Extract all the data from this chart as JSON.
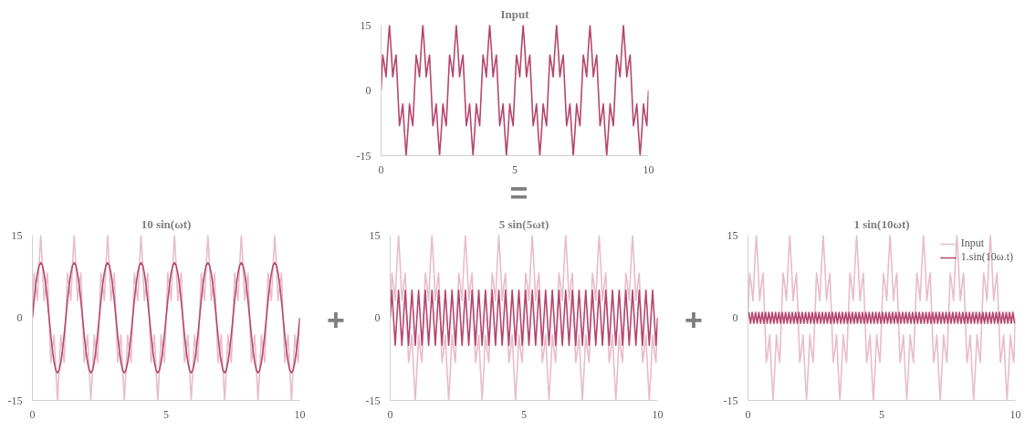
{
  "chart_data": [
    {
      "type": "line",
      "title": "Input",
      "xlim": [
        0,
        10
      ],
      "ylim": [
        -15,
        15
      ],
      "xticks": [
        0,
        5,
        10
      ],
      "yticks": [
        -15,
        0,
        15
      ],
      "annotations": [
        "="
      ],
      "x": [
        0,
        0.0625,
        0.125,
        0.1875,
        0.25,
        0.3125,
        0.375,
        0.4375,
        0.5,
        0.5625,
        0.625,
        0.6875,
        0.75,
        0.8125,
        0.875,
        0.9375,
        1,
        1.0625,
        1.125,
        1.1875,
        1.25,
        1.3125,
        1.375,
        1.4375,
        1.5,
        1.5625,
        1.625,
        1.6875,
        1.75,
        1.8125,
        1.875,
        1.9375,
        2,
        2.0625,
        2.125,
        2.1875,
        2.25,
        2.3125,
        2.375,
        2.4375,
        2.5,
        2.5625,
        2.625,
        2.6875,
        2.75,
        2.8125,
        2.875,
        2.9375,
        3,
        3.0625,
        3.125,
        3.1875,
        3.25,
        3.3125,
        3.375,
        3.4375,
        3.5,
        3.5625,
        3.625,
        3.6875,
        3.75,
        3.8125,
        3.875,
        3.9375,
        4,
        4.0625,
        4.125,
        4.1875,
        4.25,
        4.3125,
        4.375,
        4.4375,
        4.5,
        4.5625,
        4.625,
        4.6875,
        4.75,
        4.8125,
        4.875,
        4.9375,
        5,
        5.0625,
        5.125,
        5.1875,
        5.25,
        5.3125,
        5.375,
        5.4375,
        5.5,
        5.5625,
        5.625,
        5.6875,
        5.75,
        5.8125,
        5.875,
        5.9375,
        6,
        6.0625,
        6.125,
        6.1875,
        6.25,
        6.3125,
        6.375,
        6.4375,
        6.5,
        6.5625,
        6.625,
        6.6875,
        6.75,
        6.8125,
        6.875,
        6.9375,
        7,
        7.0625,
        7.125,
        7.1875,
        7.25,
        7.3125,
        7.375,
        7.4375,
        7.5,
        7.5625,
        7.625,
        7.6875,
        7.75,
        7.8125,
        7.875,
        7.9375,
        8,
        8.0625,
        8.125,
        8.1875,
        8.25,
        8.3125,
        8.375,
        8.4375,
        8.5,
        8.5625,
        8.625,
        8.6875,
        8.75,
        8.8125,
        8.875,
        8.9375,
        9,
        9.0625,
        9.125,
        9.1875,
        9.25,
        9.3125,
        9.375,
        9.4375,
        9.5,
        9.5625,
        9.625,
        9.6875,
        9.75,
        9.8125,
        9.875,
        9.9375,
        10
      ],
      "series": [
        {
          "color": "#b5466e",
          "values": [
            0,
            8.1,
            5.9,
            3.1,
            9.5,
            15,
            9.5,
            3.1,
            5.9,
            8.1,
            0,
            -8.1,
            -5.9,
            -3.1,
            -9.5,
            -15,
            -9.5,
            -3.1,
            -5.9,
            -8.1,
            0,
            8.1,
            5.9,
            3.1,
            9.5,
            15,
            9.5,
            3.1,
            5.9,
            8.1,
            0,
            -8.1,
            -5.9,
            -3.1,
            -9.5,
            -15,
            -9.5,
            -3.1,
            -5.9,
            -8.1,
            0,
            8.1,
            5.9,
            3.1,
            9.5,
            15,
            9.5,
            3.1,
            5.9,
            8.1,
            0,
            -8.1,
            -5.9,
            -3.1,
            -9.5,
            -15,
            -9.5,
            -3.1,
            -5.9,
            -8.1,
            0,
            8.1,
            5.9,
            3.1,
            9.5,
            15,
            9.5,
            3.1,
            5.9,
            8.1,
            0,
            -8.1,
            -5.9,
            -3.1,
            -9.5,
            -15,
            -9.5,
            -3.1,
            -5.9,
            -8.1,
            0,
            8.1,
            5.9,
            3.1,
            9.5,
            15,
            9.5,
            3.1,
            5.9,
            8.1,
            0,
            -8.1,
            -5.9,
            -3.1,
            -9.5,
            -15,
            -9.5,
            -3.1,
            -5.9,
            -8.1,
            0,
            8.1,
            5.9,
            3.1,
            9.5,
            15,
            9.5,
            3.1,
            5.9,
            8.1,
            0,
            -8.1,
            -5.9,
            -3.1,
            -9.5,
            -15,
            -9.5,
            -3.1,
            -5.9,
            -8.1,
            0,
            8.1,
            5.9,
            3.1,
            9.5,
            15,
            9.5,
            3.1,
            5.9,
            8.1,
            0,
            -8.1,
            -5.9,
            -3.1,
            -9.5,
            -15,
            -9.5,
            -3.1,
            -5.9,
            -8.1,
            0,
            8.1,
            5.9,
            3.1,
            9.5,
            15,
            9.5,
            3.1,
            5.9,
            8.1,
            0,
            -8.1,
            -5.9,
            -3.1,
            -9.5,
            -15,
            -9.5,
            -3.1,
            -5.9,
            -8.1,
            0
          ]
        }
      ]
    },
    {
      "type": "line",
      "title": "10 sin(ωt)",
      "xlim": [
        0,
        10
      ],
      "ylim": [
        -15,
        15
      ],
      "xticks": [
        0,
        5,
        10
      ],
      "yticks": [
        -15,
        0,
        15
      ],
      "x": [
        0,
        0.0625,
        0.125,
        0.1875,
        0.25,
        0.3125,
        0.375,
        0.4375,
        0.5,
        0.5625,
        0.625,
        0.6875,
        0.75,
        0.8125,
        0.875,
        0.9375,
        1,
        1.0625,
        1.125,
        1.1875,
        1.25,
        1.3125,
        1.375,
        1.4375,
        1.5,
        1.5625,
        1.625,
        1.6875,
        1.75,
        1.8125,
        1.875,
        1.9375,
        2,
        2.0625,
        2.125,
        2.1875,
        2.25,
        2.3125,
        2.375,
        2.4375,
        2.5,
        2.5625,
        2.625,
        2.6875,
        2.75,
        2.8125,
        2.875,
        2.9375,
        3,
        3.0625,
        3.125,
        3.1875,
        3.25,
        3.3125,
        3.375,
        3.4375,
        3.5,
        3.5625,
        3.625,
        3.6875,
        3.75,
        3.8125,
        3.875,
        3.9375,
        4,
        4.0625,
        4.125,
        4.1875,
        4.25,
        4.3125,
        4.375,
        4.4375,
        4.5,
        4.5625,
        4.625,
        4.6875,
        4.75,
        4.8125,
        4.875,
        4.9375,
        5,
        5.0625,
        5.125,
        5.1875,
        5.25,
        5.3125,
        5.375,
        5.4375,
        5.5,
        5.5625,
        5.625,
        5.6875,
        5.75,
        5.8125,
        5.875,
        5.9375,
        6,
        6.0625,
        6.125,
        6.1875,
        6.25,
        6.3125,
        6.375,
        6.4375,
        6.5,
        6.5625,
        6.625,
        6.6875,
        6.75,
        6.8125,
        6.875,
        6.9375,
        7,
        7.0625,
        7.125,
        7.1875,
        7.25,
        7.3125,
        7.375,
        7.4375,
        7.5,
        7.5625,
        7.625,
        7.6875,
        7.75,
        7.8125,
        7.875,
        7.9375,
        8,
        8.0625,
        8.125,
        8.1875,
        8.25,
        8.3125,
        8.375,
        8.4375,
        8.5,
        8.5625,
        8.625,
        8.6875,
        8.75,
        8.8125,
        8.875,
        8.9375,
        9,
        9.0625,
        9.125,
        9.1875,
        9.25,
        9.3125,
        9.375,
        9.4375,
        9.5,
        9.5625,
        9.625,
        9.6875,
        9.75,
        9.8125,
        9.875,
        9.9375,
        10
      ],
      "series": [
        {
          "color": "#e8bccb",
          "values": [
            0,
            8.1,
            5.9,
            3.1,
            9.5,
            15,
            9.5,
            3.1,
            5.9,
            8.1,
            0,
            -8.1,
            -5.9,
            -3.1,
            -9.5,
            -15,
            -9.5,
            -3.1,
            -5.9,
            -8.1,
            0,
            8.1,
            5.9,
            3.1,
            9.5,
            15,
            9.5,
            3.1,
            5.9,
            8.1,
            0,
            -8.1,
            -5.9,
            -3.1,
            -9.5,
            -15,
            -9.5,
            -3.1,
            -5.9,
            -8.1,
            0,
            8.1,
            5.9,
            3.1,
            9.5,
            15,
            9.5,
            3.1,
            5.9,
            8.1,
            0,
            -8.1,
            -5.9,
            -3.1,
            -9.5,
            -15,
            -9.5,
            -3.1,
            -5.9,
            -8.1,
            0,
            8.1,
            5.9,
            3.1,
            9.5,
            15,
            9.5,
            3.1,
            5.9,
            8.1,
            0,
            -8.1,
            -5.9,
            -3.1,
            -9.5,
            -15,
            -9.5,
            -3.1,
            -5.9,
            -8.1,
            0,
            8.1,
            5.9,
            3.1,
            9.5,
            15,
            9.5,
            3.1,
            5.9,
            8.1,
            0,
            -8.1,
            -5.9,
            -3.1,
            -9.5,
            -15,
            -9.5,
            -3.1,
            -5.9,
            -8.1,
            0,
            8.1,
            5.9,
            3.1,
            9.5,
            15,
            9.5,
            3.1,
            5.9,
            8.1,
            0,
            -8.1,
            -5.9,
            -3.1,
            -9.5,
            -15,
            -9.5,
            -3.1,
            -5.9,
            -8.1,
            0,
            8.1,
            5.9,
            3.1,
            9.5,
            15,
            9.5,
            3.1,
            5.9,
            8.1,
            0,
            -8.1,
            -5.9,
            -3.1,
            -9.5,
            -15,
            -9.5,
            -3.1,
            -5.9,
            -8.1,
            0,
            8.1,
            5.9,
            3.1,
            9.5,
            15,
            9.5,
            3.1,
            5.9,
            8.1,
            0,
            -8.1,
            -5.9,
            -3.1,
            -9.5,
            -15,
            -9.5,
            -3.1,
            -5.9,
            -8.1,
            0
          ]
        },
        {
          "color": "#b5466e",
          "values": [
            0,
            3.1,
            5.9,
            8.1,
            9.5,
            10,
            9.5,
            8.1,
            5.9,
            3.1,
            0,
            -3.1,
            -5.9,
            -8.1,
            -9.5,
            -10,
            -9.5,
            -8.1,
            -5.9,
            -3.1,
            0,
            3.1,
            5.9,
            8.1,
            9.5,
            10,
            9.5,
            8.1,
            5.9,
            3.1,
            0,
            -3.1,
            -5.9,
            -8.1,
            -9.5,
            -10,
            -9.5,
            -8.1,
            -5.9,
            -3.1,
            0,
            3.1,
            5.9,
            8.1,
            9.5,
            10,
            9.5,
            8.1,
            5.9,
            3.1,
            0,
            -3.1,
            -5.9,
            -8.1,
            -9.5,
            -10,
            -9.5,
            -8.1,
            -5.9,
            -3.1,
            0,
            3.1,
            5.9,
            8.1,
            9.5,
            10,
            9.5,
            8.1,
            5.9,
            3.1,
            0,
            -3.1,
            -5.9,
            -8.1,
            -9.5,
            -10,
            -9.5,
            -8.1,
            -5.9,
            -3.1,
            0,
            3.1,
            5.9,
            8.1,
            9.5,
            10,
            9.5,
            8.1,
            5.9,
            3.1,
            0,
            -3.1,
            -5.9,
            -8.1,
            -9.5,
            -10,
            -9.5,
            -8.1,
            -5.9,
            -3.1,
            0,
            3.1,
            5.9,
            8.1,
            9.5,
            10,
            9.5,
            8.1,
            5.9,
            3.1,
            0,
            -3.1,
            -5.9,
            -8.1,
            -9.5,
            -10,
            -9.5,
            -8.1,
            -5.9,
            -3.1,
            0,
            3.1,
            5.9,
            8.1,
            9.5,
            10,
            9.5,
            8.1,
            5.9,
            3.1,
            0,
            -3.1,
            -5.9,
            -8.1,
            -9.5,
            -10,
            -9.5,
            -8.1,
            -5.9,
            -3.1,
            0,
            3.1,
            5.9,
            8.1,
            9.5,
            10,
            9.5,
            8.1,
            5.9,
            3.1,
            0,
            -3.1,
            -5.9,
            -8.1,
            -9.5,
            -10,
            -9.5,
            -8.1,
            -5.9,
            -3.1,
            0
          ]
        }
      ]
    },
    {
      "type": "line",
      "title": "5 sin(5ωt)",
      "xlim": [
        0,
        10
      ],
      "ylim": [
        -15,
        15
      ],
      "xticks": [
        0,
        5,
        10
      ],
      "yticks": [
        -15,
        0,
        15
      ],
      "annotations": [
        "+"
      ],
      "x": [
        0,
        0.0625,
        0.125,
        0.1875,
        0.25,
        0.3125,
        0.375,
        0.4375,
        0.5,
        0.5625,
        0.625,
        0.6875,
        0.75,
        0.8125,
        0.875,
        0.9375,
        1,
        1.0625,
        1.125,
        1.1875,
        1.25,
        1.3125,
        1.375,
        1.4375,
        1.5,
        1.5625,
        1.625,
        1.6875,
        1.75,
        1.8125,
        1.875,
        1.9375,
        2,
        2.0625,
        2.125,
        2.1875,
        2.25,
        2.3125,
        2.375,
        2.4375,
        2.5,
        2.5625,
        2.625,
        2.6875,
        2.75,
        2.8125,
        2.875,
        2.9375,
        3,
        3.0625,
        3.125,
        3.1875,
        3.25,
        3.3125,
        3.375,
        3.4375,
        3.5,
        3.5625,
        3.625,
        3.6875,
        3.75,
        3.8125,
        3.875,
        3.9375,
        4,
        4.0625,
        4.125,
        4.1875,
        4.25,
        4.3125,
        4.375,
        4.4375,
        4.5,
        4.5625,
        4.625,
        4.6875,
        4.75,
        4.8125,
        4.875,
        4.9375,
        5,
        5.0625,
        5.125,
        5.1875,
        5.25,
        5.3125,
        5.375,
        5.4375,
        5.5,
        5.5625,
        5.625,
        5.6875,
        5.75,
        5.8125,
        5.875,
        5.9375,
        6,
        6.0625,
        6.125,
        6.1875,
        6.25,
        6.3125,
        6.375,
        6.4375,
        6.5,
        6.5625,
        6.625,
        6.6875,
        6.75,
        6.8125,
        6.875,
        6.9375,
        7,
        7.0625,
        7.125,
        7.1875,
        7.25,
        7.3125,
        7.375,
        7.4375,
        7.5,
        7.5625,
        7.625,
        7.6875,
        7.75,
        7.8125,
        7.875,
        7.9375,
        8,
        8.0625,
        8.125,
        8.1875,
        8.25,
        8.3125,
        8.375,
        8.4375,
        8.5,
        8.5625,
        8.625,
        8.6875,
        8.75,
        8.8125,
        8.875,
        8.9375,
        9,
        9.0625,
        9.125,
        9.1875,
        9.25,
        9.3125,
        9.375,
        9.4375,
        9.5,
        9.5625,
        9.625,
        9.6875,
        9.75,
        9.8125,
        9.875,
        9.9375,
        10
      ],
      "series": [
        {
          "color": "#e8bccb",
          "values": [
            0,
            8.1,
            5.9,
            3.1,
            9.5,
            15,
            9.5,
            3.1,
            5.9,
            8.1,
            0,
            -8.1,
            -5.9,
            -3.1,
            -9.5,
            -15,
            -9.5,
            -3.1,
            -5.9,
            -8.1,
            0,
            8.1,
            5.9,
            3.1,
            9.5,
            15,
            9.5,
            3.1,
            5.9,
            8.1,
            0,
            -8.1,
            -5.9,
            -3.1,
            -9.5,
            -15,
            -9.5,
            -3.1,
            -5.9,
            -8.1,
            0,
            8.1,
            5.9,
            3.1,
            9.5,
            15,
            9.5,
            3.1,
            5.9,
            8.1,
            0,
            -8.1,
            -5.9,
            -3.1,
            -9.5,
            -15,
            -9.5,
            -3.1,
            -5.9,
            -8.1,
            0,
            8.1,
            5.9,
            3.1,
            9.5,
            15,
            9.5,
            3.1,
            5.9,
            8.1,
            0,
            -8.1,
            -5.9,
            -3.1,
            -9.5,
            -15,
            -9.5,
            -3.1,
            -5.9,
            -8.1,
            0,
            8.1,
            5.9,
            3.1,
            9.5,
            15,
            9.5,
            3.1,
            5.9,
            8.1,
            0,
            -8.1,
            -5.9,
            -3.1,
            -9.5,
            -15,
            -9.5,
            -3.1,
            -5.9,
            -8.1,
            0,
            8.1,
            5.9,
            3.1,
            9.5,
            15,
            9.5,
            3.1,
            5.9,
            8.1,
            0,
            -8.1,
            -5.9,
            -3.1,
            -9.5,
            -15,
            -9.5,
            -3.1,
            -5.9,
            -8.1,
            0,
            8.1,
            5.9,
            3.1,
            9.5,
            15,
            9.5,
            3.1,
            5.9,
            8.1,
            0,
            -8.1,
            -5.9,
            -3.1,
            -9.5,
            -15,
            -9.5,
            -3.1,
            -5.9,
            -8.1,
            0,
            8.1,
            5.9,
            3.1,
            9.5,
            15,
            9.5,
            3.1,
            5.9,
            8.1,
            0,
            -8.1,
            -5.9,
            -3.1,
            -9.5,
            -15,
            -9.5,
            -3.1,
            -5.9,
            -8.1,
            0
          ]
        },
        {
          "color": "#b5466e",
          "values": [
            0,
            5,
            0,
            -5,
            0,
            5,
            0,
            -5,
            0,
            5,
            0,
            -5,
            0,
            5,
            0,
            -5,
            0,
            5,
            0,
            -5,
            0,
            5,
            0,
            -5,
            0,
            5,
            0,
            -5,
            0,
            5,
            0,
            -5,
            0,
            5,
            0,
            -5,
            0,
            5,
            0,
            -5,
            0,
            5,
            0,
            -5,
            0,
            5,
            0,
            -5,
            0,
            5,
            0,
            -5,
            0,
            5,
            0,
            -5,
            0,
            5,
            0,
            -5,
            0,
            5,
            0,
            -5,
            0,
            5,
            0,
            -5,
            0,
            5,
            0,
            -5,
            0,
            5,
            0,
            -5,
            0,
            5,
            0,
            -5,
            0,
            5,
            0,
            -5,
            0,
            5,
            0,
            -5,
            0,
            5,
            0,
            -5,
            0,
            5,
            0,
            -5,
            0,
            5,
            0,
            -5,
            0,
            5,
            0,
            -5,
            0,
            5,
            0,
            -5,
            0,
            5,
            0,
            -5,
            0,
            5,
            0,
            -5,
            0,
            5,
            0,
            -5,
            0,
            5,
            0,
            -5,
            0,
            5,
            0,
            -5,
            0,
            5,
            0,
            -5,
            0,
            5,
            0,
            -5,
            0,
            5,
            0,
            -5,
            0,
            5,
            0,
            -5,
            0,
            5,
            0,
            -5,
            0,
            5,
            0,
            -5,
            0,
            5,
            0,
            -5,
            0,
            5,
            0,
            -5,
            0
          ]
        }
      ]
    },
    {
      "type": "line",
      "title": "1 sin(10ωt)",
      "xlim": [
        0,
        10
      ],
      "ylim": [
        -15,
        15
      ],
      "xticks": [
        0,
        5,
        10
      ],
      "yticks": [
        -15,
        0,
        15
      ],
      "annotations": [
        "+"
      ],
      "legend": "top right",
      "x": [
        0,
        0.0625,
        0.125,
        0.1875,
        0.25,
        0.3125,
        0.375,
        0.4375,
        0.5,
        0.5625,
        0.625,
        0.6875,
        0.75,
        0.8125,
        0.875,
        0.9375,
        1,
        1.0625,
        1.125,
        1.1875,
        1.25,
        1.3125,
        1.375,
        1.4375,
        1.5,
        1.5625,
        1.625,
        1.6875,
        1.75,
        1.8125,
        1.875,
        1.9375,
        2,
        2.0625,
        2.125,
        2.1875,
        2.25,
        2.3125,
        2.375,
        2.4375,
        2.5,
        2.5625,
        2.625,
        2.6875,
        2.75,
        2.8125,
        2.875,
        2.9375,
        3,
        3.0625,
        3.125,
        3.1875,
        3.25,
        3.3125,
        3.375,
        3.4375,
        3.5,
        3.5625,
        3.625,
        3.6875,
        3.75,
        3.8125,
        3.875,
        3.9375,
        4,
        4.0625,
        4.125,
        4.1875,
        4.25,
        4.3125,
        4.375,
        4.4375,
        4.5,
        4.5625,
        4.625,
        4.6875,
        4.75,
        4.8125,
        4.875,
        4.9375,
        5,
        5.0625,
        5.125,
        5.1875,
        5.25,
        5.3125,
        5.375,
        5.4375,
        5.5,
        5.5625,
        5.625,
        5.6875,
        5.75,
        5.8125,
        5.875,
        5.9375,
        6,
        6.0625,
        6.125,
        6.1875,
        6.25,
        6.3125,
        6.375,
        6.4375,
        6.5,
        6.5625,
        6.625,
        6.6875,
        6.75,
        6.8125,
        6.875,
        6.9375,
        7,
        7.0625,
        7.125,
        7.1875,
        7.25,
        7.3125,
        7.375,
        7.4375,
        7.5,
        7.5625,
        7.625,
        7.6875,
        7.75,
        7.8125,
        7.875,
        7.9375,
        8,
        8.0625,
        8.125,
        8.1875,
        8.25,
        8.3125,
        8.375,
        8.4375,
        8.5,
        8.5625,
        8.625,
        8.6875,
        8.75,
        8.8125,
        8.875,
        8.9375,
        9,
        9.0625,
        9.125,
        9.1875,
        9.25,
        9.3125,
        9.375,
        9.4375,
        9.5,
        9.5625,
        9.625,
        9.6875,
        9.75,
        9.8125,
        9.875,
        9.9375,
        10
      ],
      "series": [
        {
          "name": "Input",
          "color": "#e8bccb",
          "values": [
            0,
            8.1,
            5.9,
            3.1,
            9.5,
            15,
            9.5,
            3.1,
            5.9,
            8.1,
            0,
            -8.1,
            -5.9,
            -3.1,
            -9.5,
            -15,
            -9.5,
            -3.1,
            -5.9,
            -8.1,
            0,
            8.1,
            5.9,
            3.1,
            9.5,
            15,
            9.5,
            3.1,
            5.9,
            8.1,
            0,
            -8.1,
            -5.9,
            -3.1,
            -9.5,
            -15,
            -9.5,
            -3.1,
            -5.9,
            -8.1,
            0,
            8.1,
            5.9,
            3.1,
            9.5,
            15,
            9.5,
            3.1,
            5.9,
            8.1,
            0,
            -8.1,
            -5.9,
            -3.1,
            -9.5,
            -15,
            -9.5,
            -3.1,
            -5.9,
            -8.1,
            0,
            8.1,
            5.9,
            3.1,
            9.5,
            15,
            9.5,
            3.1,
            5.9,
            8.1,
            0,
            -8.1,
            -5.9,
            -3.1,
            -9.5,
            -15,
            -9.5,
            -3.1,
            -5.9,
            -8.1,
            0,
            8.1,
            5.9,
            3.1,
            9.5,
            15,
            9.5,
            3.1,
            5.9,
            8.1,
            0,
            -8.1,
            -5.9,
            -3.1,
            -9.5,
            -15,
            -9.5,
            -3.1,
            -5.9,
            -8.1,
            0,
            8.1,
            5.9,
            3.1,
            9.5,
            15,
            9.5,
            3.1,
            5.9,
            8.1,
            0,
            -8.1,
            -5.9,
            -3.1,
            -9.5,
            -15,
            -9.5,
            -3.1,
            -5.9,
            -8.1,
            0,
            8.1,
            5.9,
            3.1,
            9.5,
            15,
            9.5,
            3.1,
            5.9,
            8.1,
            0,
            -8.1,
            -5.9,
            -3.1,
            -9.5,
            -15,
            -9.5,
            -3.1,
            -5.9,
            -8.1,
            0,
            8.1,
            5.9,
            3.1,
            9.5,
            15,
            9.5,
            3.1,
            5.9,
            8.1,
            0,
            -8.1,
            -5.9,
            -3.1,
            -9.5,
            -15,
            -9.5,
            -3.1,
            -5.9,
            -8.1,
            0
          ]
        },
        {
          "name": "1.sin(10ω.t)",
          "color": "#b5466e",
          "x": [
            0.03125,
            0.09375,
            0.15625,
            0.21875,
            0.28125,
            0.34375,
            0.40625,
            0.46875,
            0.53125,
            0.59375,
            0.65625,
            0.71875,
            0.78125,
            0.84375,
            0.90625,
            0.96875,
            1.03125,
            1.09375,
            1.15625,
            1.21875,
            1.28125,
            1.34375,
            1.40625,
            1.46875,
            1.53125,
            1.59375,
            1.65625,
            1.71875,
            1.78125,
            1.84375,
            1.90625,
            1.96875,
            2.03125,
            2.09375,
            2.15625,
            2.21875,
            2.28125,
            2.34375,
            2.40625,
            2.46875,
            2.53125,
            2.59375,
            2.65625,
            2.71875,
            2.78125,
            2.84375,
            2.90625,
            2.96875,
            3.03125,
            3.09375,
            3.15625,
            3.21875,
            3.28125,
            3.34375,
            3.40625,
            3.46875,
            3.53125,
            3.59375,
            3.65625,
            3.71875,
            3.78125,
            3.84375,
            3.90625,
            3.96875,
            4.03125,
            4.09375,
            4.15625,
            4.21875,
            4.28125,
            4.34375,
            4.40625,
            4.46875,
            4.53125,
            4.59375,
            4.65625,
            4.71875,
            4.78125,
            4.84375,
            4.90625,
            4.96875,
            5.03125,
            5.09375,
            5.15625,
            5.21875,
            5.28125,
            5.34375,
            5.40625,
            5.46875,
            5.53125,
            5.59375,
            5.65625,
            5.71875,
            5.78125,
            5.84375,
            5.90625,
            5.96875,
            6.03125,
            6.09375,
            6.15625,
            6.21875,
            6.28125,
            6.34375,
            6.40625,
            6.46875,
            6.53125,
            6.59375,
            6.65625,
            6.71875,
            6.78125,
            6.84375,
            6.90625,
            6.96875,
            7.03125,
            7.09375,
            7.15625,
            7.21875,
            7.28125,
            7.34375,
            7.40625,
            7.46875,
            7.53125,
            7.59375,
            7.65625,
            7.71875,
            7.78125,
            7.84375,
            7.90625,
            7.96875,
            8.03125,
            8.09375,
            8.15625,
            8.21875,
            8.28125,
            8.34375,
            8.40625,
            8.46875,
            8.53125,
            8.59375,
            8.65625,
            8.71875,
            8.78125,
            8.84375,
            8.90625,
            8.96875,
            9.03125,
            9.09375,
            9.15625,
            9.21875,
            9.28125,
            9.34375,
            9.40625,
            9.46875,
            9.53125,
            9.59375,
            9.65625,
            9.71875,
            9.78125,
            9.84375,
            9.90625,
            9.96875
          ],
          "values": [
            1,
            -1,
            1,
            -1,
            1,
            -1,
            1,
            -1,
            1,
            -1,
            1,
            -1,
            1,
            -1,
            1,
            -1,
            1,
            -1,
            1,
            -1,
            1,
            -1,
            1,
            -1,
            1,
            -1,
            1,
            -1,
            1,
            -1,
            1,
            -1,
            1,
            -1,
            1,
            -1,
            1,
            -1,
            1,
            -1,
            1,
            -1,
            1,
            -1,
            1,
            -1,
            1,
            -1,
            1,
            -1,
            1,
            -1,
            1,
            -1,
            1,
            -1,
            1,
            -1,
            1,
            -1,
            1,
            -1,
            1,
            -1,
            1,
            -1,
            1,
            -1,
            1,
            -1,
            1,
            -1,
            1,
            -1,
            1,
            -1,
            1,
            -1,
            1,
            -1,
            1,
            -1,
            1,
            -1,
            1,
            -1,
            1,
            -1,
            1,
            -1,
            1,
            -1,
            1,
            -1,
            1,
            -1,
            1,
            -1,
            1,
            -1,
            1,
            -1,
            1,
            -1,
            1,
            -1,
            1,
            -1,
            1,
            -1,
            1,
            -1,
            1,
            -1,
            1,
            -1,
            1,
            -1,
            1,
            -1,
            1,
            -1,
            1,
            -1,
            1,
            -1,
            1,
            -1,
            1,
            -1,
            1,
            -1,
            1,
            -1,
            1,
            -1,
            1,
            -1,
            1,
            -1,
            1,
            -1,
            1,
            -1,
            1,
            -1,
            1,
            -1,
            1,
            -1,
            1,
            -1,
            1,
            -1,
            1,
            -1,
            1,
            -1,
            1,
            -1
          ]
        }
      ]
    }
  ]
}
